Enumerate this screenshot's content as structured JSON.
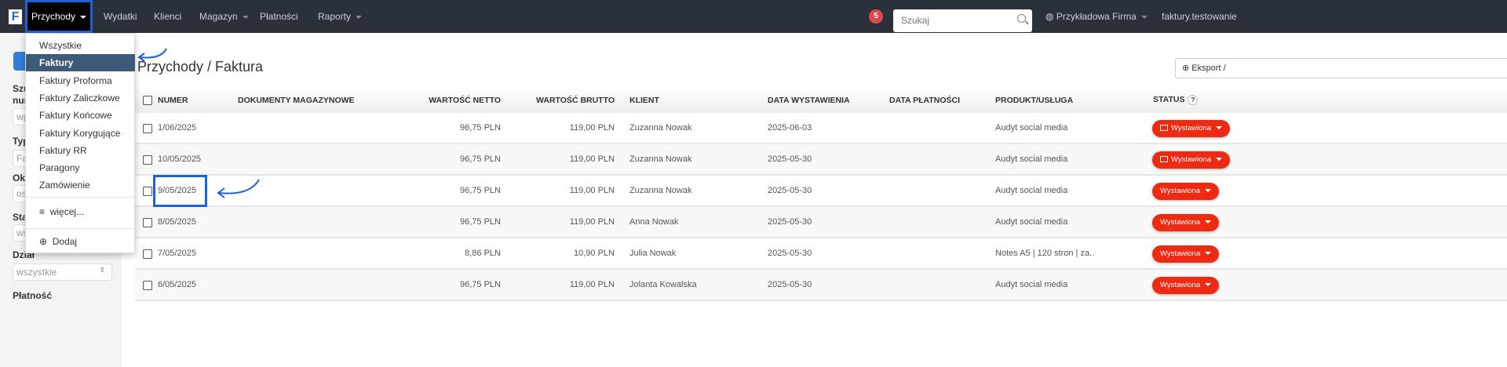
{
  "nav": {
    "logo": "F",
    "items": [
      {
        "label": "Przychody",
        "caret": true
      },
      {
        "label": "Wydatki"
      },
      {
        "label": "Klienci"
      },
      {
        "label": "Magazyn",
        "caret": true
      },
      {
        "label": "Płatności"
      },
      {
        "label": "Raporty",
        "caret": true
      }
    ],
    "notifications": "5",
    "search_placeholder": "Szukaj",
    "company": "Przykładowa Firma",
    "user": "faktury.testowanie"
  },
  "sidebar": {
    "labels": [
      "Szu",
      "nur",
      "Typ",
      "Okr",
      "Sta",
      "Dział",
      "Płatność"
    ],
    "inputs": [
      "wp",
      "Fa",
      "os",
      "ws",
      "wszystkie"
    ]
  },
  "dropdown": {
    "items": [
      "Wszystkie",
      "Faktury",
      "Faktury Proforma",
      "Faktury Zaliczkowe",
      "Faktury Końcowe",
      "Faktury Korygujące",
      "Faktury RR",
      "Paragony",
      "Zamówienie"
    ],
    "selected": "Faktury",
    "more": "więcej...",
    "add": "Dodaj"
  },
  "page": {
    "title": "Przychody / Faktura",
    "export": "Eksport / "
  },
  "table": {
    "headers": [
      "NUMER",
      "DOKUMENTY MAGAZYNOWE",
      "WARTOŚĆ NETTO",
      "WARTOŚĆ BRUTTO",
      "KLIENT",
      "DATA WYSTAWIENIA",
      "DATA PŁATNOŚCI",
      "PRODUKT/USŁUGA",
      "STATUS"
    ],
    "status_help": "?",
    "rows": [
      {
        "numer": "1/06/2025",
        "netto": "96,75 PLN",
        "brutto": "119,00 PLN",
        "klient": "Zuzanna Nowak",
        "data": "2025-06-03",
        "produkt": "Audyt social media",
        "status": "Wystawiona",
        "sent": true
      },
      {
        "numer": "10/05/2025",
        "netto": "96,75 PLN",
        "brutto": "119,00 PLN",
        "klient": "Zuzanna Nowak",
        "data": "2025-05-30",
        "produkt": "Audyt social media",
        "status": "Wystawiona",
        "sent": true
      },
      {
        "numer": "9/05/2025",
        "netto": "96,75 PLN",
        "brutto": "119,00 PLN",
        "klient": "Zuzanna Nowak",
        "data": "2025-05-30",
        "produkt": "Audyt social media",
        "status": "Wystawiona",
        "sent": false
      },
      {
        "numer": "8/05/2025",
        "netto": "96,75 PLN",
        "brutto": "119,00 PLN",
        "klient": "Anna Nowak",
        "data": "2025-05-30",
        "produkt": "Audyt social media",
        "status": "Wystawiona",
        "sent": false
      },
      {
        "numer": "7/05/2025",
        "netto": "8,86 PLN",
        "brutto": "10,90 PLN",
        "klient": "Julia Nowak",
        "data": "2025-05-30",
        "produkt": "Notes A5 | 120 stron | za..",
        "status": "Wystawiona",
        "sent": false
      },
      {
        "numer": "6/05/2025",
        "netto": "96,75 PLN",
        "brutto": "119,00 PLN",
        "klient": "Jolanta Kowalska",
        "data": "2025-05-30",
        "produkt": "Audyt social media",
        "status": "Wystawiona",
        "sent": false
      }
    ]
  },
  "colors": {
    "navbar": "#2b313b",
    "status": "#ee2a12",
    "annotation": "#1d63d6",
    "menu_selected": "#3d5a78"
  }
}
